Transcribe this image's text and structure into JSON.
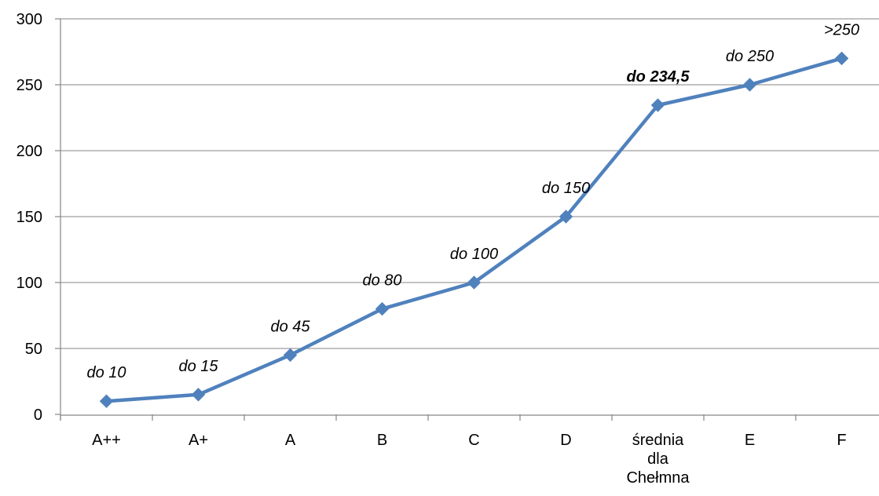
{
  "chart_data": {
    "type": "line",
    "categories": [
      "A++",
      "A+",
      "A",
      "B",
      "C",
      "D",
      "średnia dla Chełmna",
      "E",
      "F"
    ],
    "category_lines": [
      [
        "A++"
      ],
      [
        "A+"
      ],
      [
        "A"
      ],
      [
        "B"
      ],
      [
        "C"
      ],
      [
        "D"
      ],
      [
        "średnia",
        "dla",
        "Chełmna"
      ],
      [
        "E"
      ],
      [
        "F"
      ]
    ],
    "series": [
      {
        "values": [
          10,
          15,
          45,
          80,
          100,
          150,
          234.5,
          250,
          270
        ],
        "data_labels": [
          "do 10",
          "do 15",
          "do 45",
          "do 80",
          "do 100",
          "do 150",
          "do 234,5",
          "do 250",
          ">250"
        ],
        "bold_labels": [
          false,
          false,
          false,
          false,
          false,
          false,
          true,
          false,
          false
        ],
        "color": "#4F81BD"
      }
    ],
    "ylim": [
      0,
      300
    ],
    "yticks": [
      0,
      50,
      100,
      150,
      200,
      250,
      300
    ],
    "grid": true,
    "legend": "none"
  },
  "colors": {
    "series": "#4F81BD",
    "grid": "#868686",
    "axis": "#868686"
  }
}
